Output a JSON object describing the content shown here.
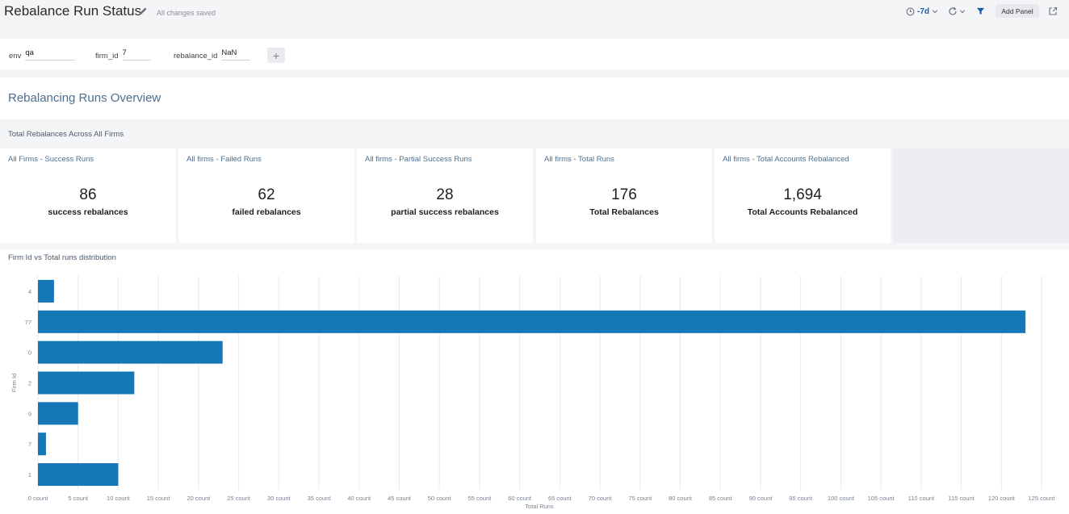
{
  "header": {
    "title": "Rebalance Run Status",
    "saved_status": "All changes saved",
    "time_range": "-7d",
    "add_panel_label": "Add Panel",
    "icons": [
      "pencil-icon",
      "clock-icon",
      "chevron-down-icon",
      "refresh-icon",
      "filter-icon",
      "export-icon"
    ]
  },
  "variables": [
    {
      "label": "env",
      "value": "qa"
    },
    {
      "label": "firm_id",
      "value": "7"
    },
    {
      "label": "rebalance_id",
      "value": "NaN"
    }
  ],
  "add_variable_label": "+",
  "overview": {
    "title": "Rebalancing Runs Overview",
    "section_label": "Total Rebalances Across All Firms"
  },
  "stats": [
    {
      "title": "All Firms - Success Runs",
      "value": "86",
      "unit": "success rebalances"
    },
    {
      "title": "All firms - Failed Runs",
      "value": "62",
      "unit": "failed rebalances"
    },
    {
      "title": "All firms - Partial Success Runs",
      "value": "28",
      "unit": "partial success rebalances"
    },
    {
      "title": "All firms - Total Runs",
      "value": "176",
      "unit": "Total Rebalances"
    },
    {
      "title": "All firms - Total Accounts Rebalanced",
      "value": "1,694",
      "unit": "Total Accounts Rebalanced"
    }
  ],
  "chart_panel_title": "Firm Id vs Total runs distribution",
  "chart_data": {
    "type": "bar",
    "orientation": "horizontal",
    "title": "Firm Id vs Total runs distribution",
    "categories": [
      "4",
      "77",
      "0",
      "2",
      "9",
      "7",
      "1"
    ],
    "values": [
      2,
      123,
      23,
      12,
      5,
      1,
      10
    ],
    "xlabel": "Total Runs",
    "ylabel": "Firm Id",
    "xlim": [
      0,
      125
    ],
    "x_ticks": [
      "0 count",
      "5 count",
      "10 count",
      "15 count",
      "20 count",
      "25 count",
      "30 count",
      "35 count",
      "40 count",
      "45 count",
      "50 count",
      "55 count",
      "60 count",
      "65 count",
      "70 count",
      "75 count",
      "80 count",
      "85 count",
      "90 count",
      "95 count",
      "100 count",
      "105 count",
      "110 count",
      "115 count",
      "120 count",
      "125 count"
    ],
    "bar_color": "#1577b6",
    "grid": true
  }
}
